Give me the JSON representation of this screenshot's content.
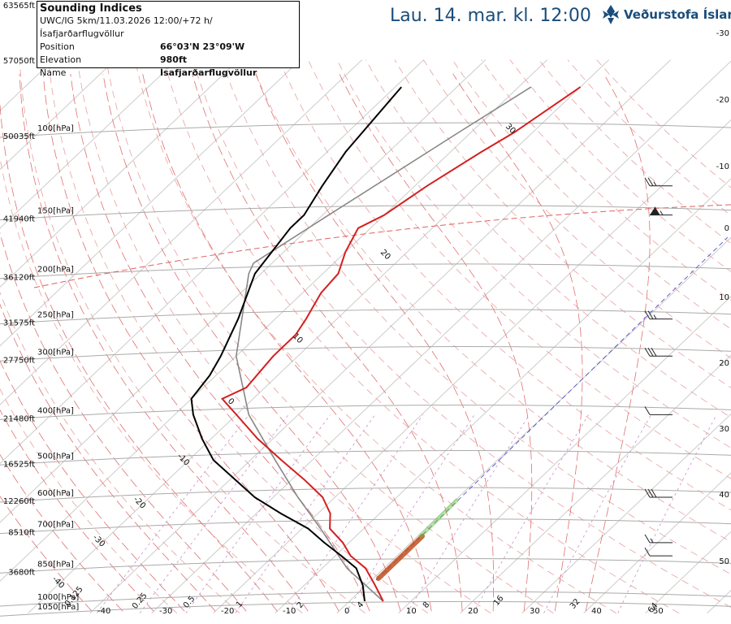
{
  "header": {
    "title": "Lau. 14. mar. kl. 12:00",
    "brand": "Veðurstofa Íslands"
  },
  "info": {
    "heading": "Sounding Indices",
    "run": "UWC/IG 5km/11.03.2026 12:00/+72 h/Ísafjarðarflugvöllur",
    "rows": [
      {
        "key": "Position",
        "value": "66°03'N 23°09'W"
      },
      {
        "key": "Elevation",
        "value": "980ft"
      },
      {
        "key": "Name",
        "value": "Ísafjarðarflugvöllur"
      }
    ]
  },
  "chart_data": {
    "type": "line",
    "diagram": "skew-T log-p",
    "colors": {
      "temperature": "#d42020",
      "dewpoint": "#000000",
      "parcel": "#888888",
      "isobar": "#aaaaaa",
      "isotherm": "#cccccc",
      "dry_adiabat": "#e8a0a0",
      "moist_adiabat": "#e07070",
      "mixing_ratio": "#c080c0",
      "freezing_level": "#e06060",
      "lcl_line": "#4040c0"
    },
    "pressure_levels": [
      {
        "hpa": "100[hPa]",
        "ft": "50035ft"
      },
      {
        "hpa": "150[hPa]",
        "ft": "41940ft"
      },
      {
        "hpa": "200[hPa]",
        "ft": "36120ft"
      },
      {
        "hpa": "250[hPa]",
        "ft": "31575ft"
      },
      {
        "hpa": "300[hPa]",
        "ft": "27750ft"
      },
      {
        "hpa": "400[hPa]",
        "ft": "21480ft"
      },
      {
        "hpa": "500[hPa]",
        "ft": "16525ft"
      },
      {
        "hpa": "600[hPa]",
        "ft": "12260ft"
      },
      {
        "hpa": "700[hPa]",
        "ft": "8510ft"
      },
      {
        "hpa": "850[hPa]",
        "ft": "3680ft"
      },
      {
        "hpa": "1000[hPa]",
        "ft": ""
      },
      {
        "hpa": "1050[hPa]",
        "ft": ""
      }
    ],
    "top_heights": [
      "63565ft",
      "57050ft"
    ],
    "right_temps": [
      "-30",
      "-20",
      "-10",
      "0",
      "10",
      "20",
      "30",
      "40",
      "50"
    ],
    "bottom_ticks": [
      "-40",
      "-30",
      "-20",
      "-10",
      "0",
      "10",
      "20",
      "30",
      "40",
      "50"
    ],
    "mixing_ratio_labels": [
      "0.125",
      "0.25",
      "0.5",
      "1",
      "2",
      "4",
      "8",
      "16",
      "32",
      "64"
    ],
    "moist_labels": [
      "-40",
      "-30",
      "-20",
      "-10",
      "0",
      "10",
      "20",
      "30"
    ],
    "temperature_profile": [
      {
        "p": 1000,
        "t": 5.5
      },
      {
        "p": 925,
        "t": 1.5
      },
      {
        "p": 850,
        "t": -3.0
      },
      {
        "p": 800,
        "t": -7.5
      },
      {
        "p": 750,
        "t": -11.0
      },
      {
        "p": 700,
        "t": -15.5
      },
      {
        "p": 650,
        "t": -18.0
      },
      {
        "p": 600,
        "t": -22.0
      },
      {
        "p": 550,
        "t": -28.0
      },
      {
        "p": 500,
        "t": -35.0
      },
      {
        "p": 450,
        "t": -42.5
      },
      {
        "p": 400,
        "t": -50.0
      },
      {
        "p": 370,
        "t": -55.0
      },
      {
        "p": 350,
        "t": -53.0
      },
      {
        "p": 300,
        "t": -54.0
      },
      {
        "p": 270,
        "t": -54.0
      },
      {
        "p": 250,
        "t": -55.0
      },
      {
        "p": 220,
        "t": -57.0
      },
      {
        "p": 200,
        "t": -57.5
      },
      {
        "p": 180,
        "t": -60.0
      },
      {
        "p": 160,
        "t": -62.0
      },
      {
        "p": 150,
        "t": -60.0
      },
      {
        "p": 130,
        "t": -58.0
      },
      {
        "p": 110,
        "t": -55.0
      },
      {
        "p": 100,
        "t": -53.0
      },
      {
        "p": 80,
        "t": -50.0
      }
    ],
    "dewpoint_profile": [
      {
        "p": 1000,
        "t": 2.5
      },
      {
        "p": 925,
        "t": -0.5
      },
      {
        "p": 850,
        "t": -4.5
      },
      {
        "p": 800,
        "t": -9.0
      },
      {
        "p": 750,
        "t": -14.0
      },
      {
        "p": 700,
        "t": -19.0
      },
      {
        "p": 650,
        "t": -26.0
      },
      {
        "p": 600,
        "t": -33.0
      },
      {
        "p": 500,
        "t": -46.0
      },
      {
        "p": 450,
        "t": -51.5
      },
      {
        "p": 400,
        "t": -57.0
      },
      {
        "p": 370,
        "t": -60.0
      },
      {
        "p": 330,
        "t": -61.0
      },
      {
        "p": 300,
        "t": -62.5
      },
      {
        "p": 250,
        "t": -66.0
      },
      {
        "p": 200,
        "t": -71.0
      },
      {
        "p": 160,
        "t": -73.0
      },
      {
        "p": 150,
        "t": -73.0
      },
      {
        "p": 130,
        "t": -75.0
      },
      {
        "p": 110,
        "t": -77.0
      },
      {
        "p": 80,
        "t": -79.0
      }
    ],
    "parcel_profile": [
      {
        "p": 1000,
        "t": 5.5
      },
      {
        "p": 850,
        "t": -6.0
      },
      {
        "p": 700,
        "t": -17.0
      },
      {
        "p": 600,
        "t": -26.0
      },
      {
        "p": 500,
        "t": -36.0
      },
      {
        "p": 400,
        "t": -48.0
      },
      {
        "p": 300,
        "t": -60.0
      },
      {
        "p": 200,
        "t": -72.0
      },
      {
        "p": 190,
        "t": -73.0
      },
      {
        "p": 150,
        "t": -69.0
      },
      {
        "p": 100,
        "t": -62.0
      },
      {
        "p": 80,
        "t": -58.0
      }
    ],
    "wind_barbs": [
      {
        "p": 150,
        "speed_kt": 65,
        "dir": 270
      },
      {
        "p": 130,
        "speed_kt": 25,
        "dir": 270
      },
      {
        "p": 250,
        "speed_kt": 25,
        "dir": 270
      },
      {
        "p": 300,
        "speed_kt": 30,
        "dir": 285
      },
      {
        "p": 400,
        "speed_kt": 10,
        "dir": 300
      },
      {
        "p": 600,
        "speed_kt": 30,
        "dir": 300
      },
      {
        "p": 750,
        "speed_kt": 15,
        "dir": 300
      },
      {
        "p": 800,
        "speed_kt": 10,
        "dir": 300
      }
    ]
  }
}
